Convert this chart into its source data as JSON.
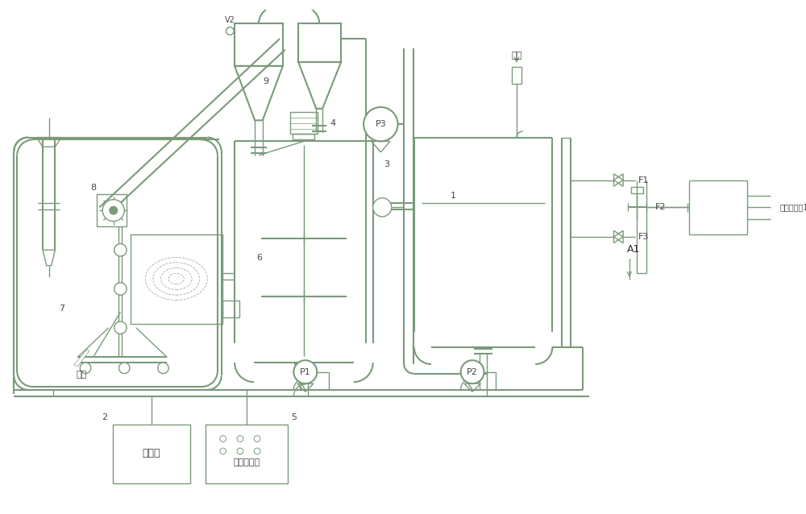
{
  "bg_color": "#ffffff",
  "lc": "#7a9a7a",
  "lc2": "#6a8a6a",
  "tc": "#444444",
  "fig_w": 10.0,
  "fig_h": 6.38,
  "dpi": 100,
  "labels": {
    "wushui": "污水",
    "paini": "排泥",
    "zhilengji": "制冷机",
    "xitong": "系统控制柜",
    "quyang": "取样检测口1"
  }
}
